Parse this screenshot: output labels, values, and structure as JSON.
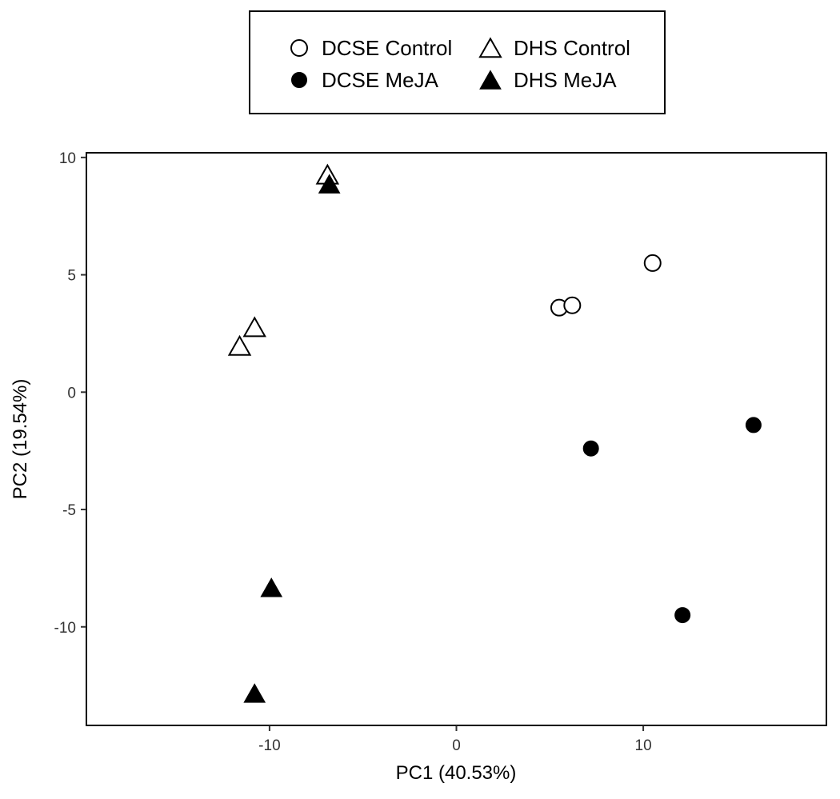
{
  "chart_data": {
    "type": "scatter",
    "xlabel": "PC1 (40.53%)",
    "ylabel": "PC2 (19.54%)",
    "xlim": [
      -19.8,
      19.8
    ],
    "ylim": [
      -14.2,
      10.2
    ],
    "xticks": [
      -10,
      0,
      10
    ],
    "yticks": [
      10,
      5,
      0,
      -5,
      -10
    ],
    "grid": false,
    "legend_position": "top",
    "series": [
      {
        "name": "DCSE Control",
        "marker": "circle",
        "filled": false,
        "color": "#000000",
        "x": [
          5.5,
          6.2,
          10.5
        ],
        "y": [
          3.6,
          3.7,
          5.5
        ]
      },
      {
        "name": "DHS Control",
        "marker": "triangle",
        "filled": false,
        "color": "#000000",
        "x": [
          -6.9,
          -11.6,
          -10.8
        ],
        "y": [
          9.2,
          1.9,
          2.7
        ]
      },
      {
        "name": "DCSE MeJA",
        "marker": "circle",
        "filled": true,
        "color": "#000000",
        "x": [
          7.2,
          15.9,
          12.1
        ],
        "y": [
          -2.4,
          -1.4,
          -9.5
        ]
      },
      {
        "name": "DHS MeJA",
        "marker": "triangle",
        "filled": true,
        "color": "#000000",
        "x": [
          -6.8,
          -9.9,
          -10.8
        ],
        "y": [
          8.8,
          -8.4,
          -12.9
        ]
      }
    ],
    "legend_order": [
      "DCSE Control",
      "DHS Control",
      "DCSE MeJA",
      "DHS MeJA"
    ]
  }
}
